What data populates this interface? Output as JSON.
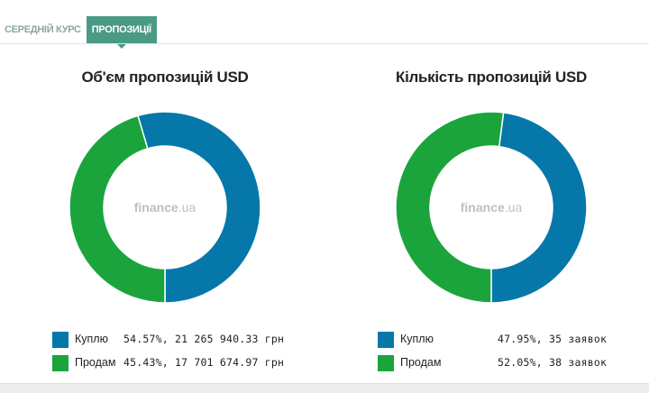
{
  "tabs": [
    {
      "label": "СЕРЕДНІЙ КУРС",
      "active": false
    },
    {
      "label": "ПРОПОЗИЦІЇ",
      "active": true
    }
  ],
  "watermark": {
    "main": "finance",
    "suffix": ".ua"
  },
  "colors": {
    "buy": "#0578a9",
    "sell": "#1ba43c"
  },
  "chart_data": [
    {
      "type": "pie",
      "title": "Об'єм пропозицій USD",
      "categories": [
        "Куплю",
        "Продам"
      ],
      "values": [
        54.57,
        45.43
      ],
      "legend": [
        {
          "label": "Куплю",
          "value_text": "54.57%, 21 265 940.33 грн"
        },
        {
          "label": "Продам",
          "value_text": "45.43%, 17 701 674.97 грн"
        }
      ],
      "legend_position": "bottom"
    },
    {
      "type": "pie",
      "title": "Кількість пропозицій USD",
      "categories": [
        "Куплю",
        "Продам"
      ],
      "values": [
        47.95,
        52.05
      ],
      "legend": [
        {
          "label": "Куплю",
          "value_text": "47.95%, 35 заявок"
        },
        {
          "label": "Продам",
          "value_text": "52.05%, 38 заявок"
        }
      ],
      "legend_position": "bottom"
    }
  ]
}
